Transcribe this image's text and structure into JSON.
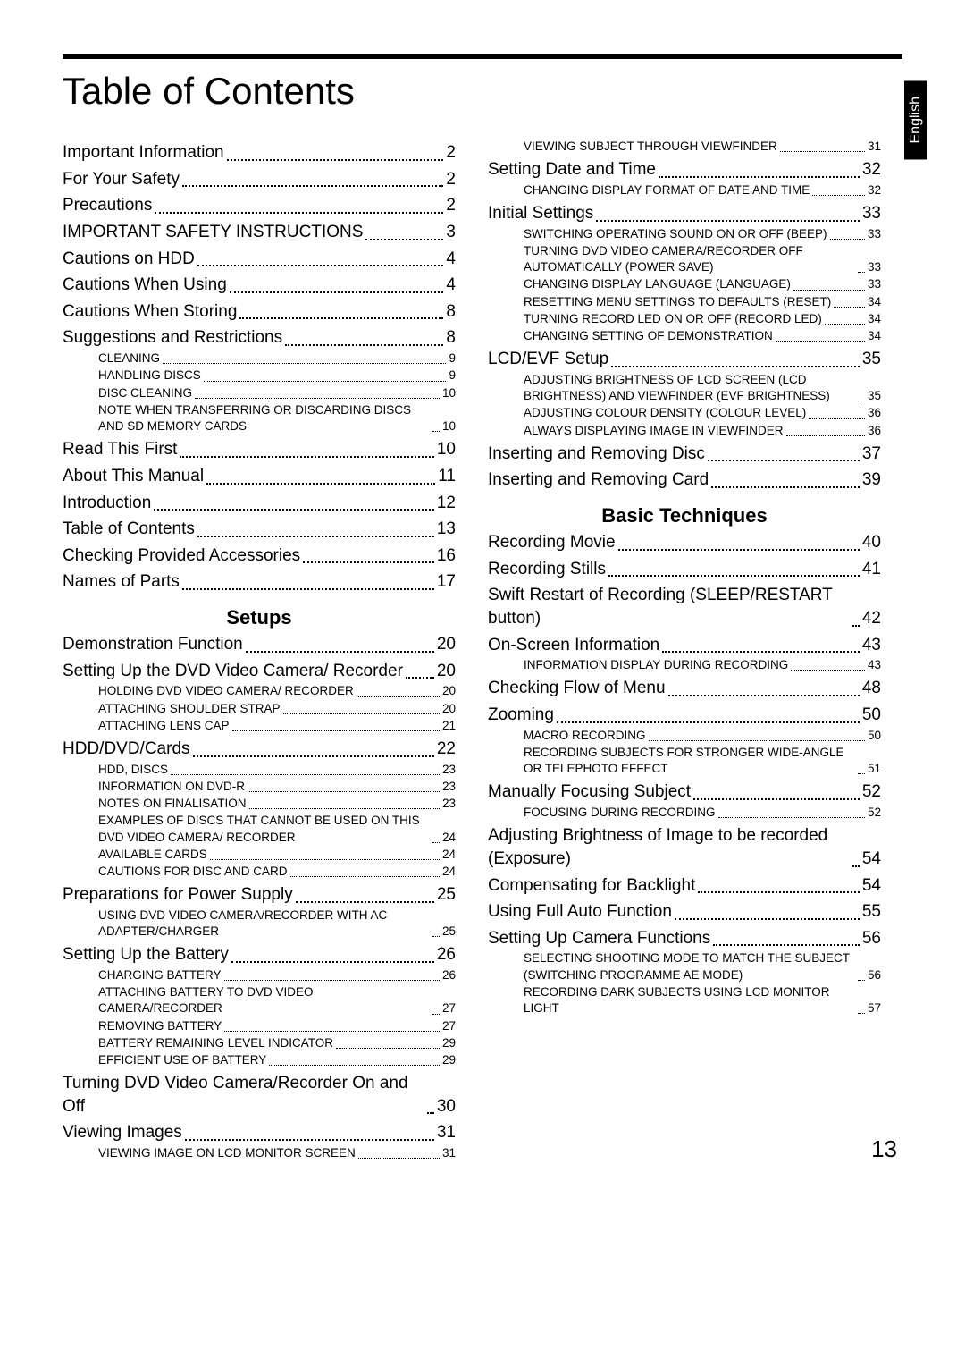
{
  "title": "Table of Contents",
  "language_tab": "English",
  "page_number": "13",
  "colors": {
    "text": "#000000",
    "background": "#ffffff",
    "tab_bg": "#000000",
    "tab_text": "#ffffff"
  },
  "left_column": [
    {
      "level": 1,
      "label": "Important Information",
      "page": "2"
    },
    {
      "level": 1,
      "label": "For Your Safety",
      "page": "2"
    },
    {
      "level": 1,
      "label": "Precautions",
      "page": "2"
    },
    {
      "level": 1,
      "label": "IMPORTANT SAFETY INSTRUCTIONS",
      "page": "3"
    },
    {
      "level": 1,
      "label": "Cautions on HDD",
      "page": "4"
    },
    {
      "level": 1,
      "label": "Cautions When Using",
      "page": "4"
    },
    {
      "level": 1,
      "label": "Cautions When Storing",
      "page": "8"
    },
    {
      "level": 1,
      "label": "Suggestions and Restrictions",
      "page": "8"
    },
    {
      "level": 3,
      "label": "CLEANING",
      "page": "9"
    },
    {
      "level": 3,
      "label": "HANDLING DISCS",
      "page": "9"
    },
    {
      "level": 3,
      "label": "DISC CLEANING",
      "page": "10"
    },
    {
      "level": 3,
      "label": "NOTE WHEN TRANSFERRING OR DISCARDING DISCS AND SD MEMORY CARDS",
      "page": "10"
    },
    {
      "level": 1,
      "label": "Read This First",
      "page": "10"
    },
    {
      "level": 1,
      "label": "About This Manual",
      "page": "11"
    },
    {
      "level": 1,
      "label": "Introduction",
      "page": "12"
    },
    {
      "level": 1,
      "label": "Table of Contents",
      "page": "13"
    },
    {
      "level": 1,
      "label": "Checking Provided Accessories",
      "page": "16"
    },
    {
      "level": 1,
      "label": "Names of Parts",
      "page": "17"
    },
    {
      "section": "Setups"
    },
    {
      "level": 1,
      "label": "Demonstration Function",
      "page": "20"
    },
    {
      "level": 1,
      "label": "Setting Up the DVD Video Camera/\nRecorder",
      "page": "20"
    },
    {
      "level": 3,
      "label": "HOLDING DVD VIDEO CAMERA/\nRECORDER",
      "page": "20"
    },
    {
      "level": 3,
      "label": "ATTACHING SHOULDER STRAP",
      "page": "20"
    },
    {
      "level": 3,
      "label": "ATTACHING LENS CAP",
      "page": "21"
    },
    {
      "level": 1,
      "label": "HDD/DVD/Cards",
      "page": "22"
    },
    {
      "level": 3,
      "label": "HDD, DISCS",
      "page": "23"
    },
    {
      "level": 3,
      "label": "INFORMATION ON DVD-R",
      "page": "23"
    },
    {
      "level": 3,
      "label": "NOTES ON FINALISATION",
      "page": "23"
    },
    {
      "level": 3,
      "label": "EXAMPLES OF DISCS THAT CANNOT BE USED ON THIS DVD VIDEO CAMERA/\nRECORDER",
      "page": "24"
    },
    {
      "level": 3,
      "label": "AVAILABLE CARDS",
      "page": "24"
    },
    {
      "level": 3,
      "label": "CAUTIONS FOR DISC AND CARD",
      "page": "24"
    },
    {
      "level": 1,
      "label": "Preparations for Power Supply",
      "page": "25"
    },
    {
      "level": 3,
      "label": "USING DVD VIDEO CAMERA/RECORDER WITH AC ADAPTER/CHARGER",
      "page": "25"
    },
    {
      "level": 1,
      "label": "Setting Up the Battery",
      "page": "26"
    },
    {
      "level": 3,
      "label": "CHARGING BATTERY",
      "page": "26"
    },
    {
      "level": 3,
      "label": "ATTACHING BATTERY TO DVD VIDEO CAMERA/RECORDER",
      "page": "27"
    },
    {
      "level": 3,
      "label": "REMOVING BATTERY",
      "page": "27"
    },
    {
      "level": 3,
      "label": "BATTERY REMAINING LEVEL INDICATOR",
      "page": "29"
    },
    {
      "level": 3,
      "label": "EFFICIENT USE OF BATTERY",
      "page": "29"
    },
    {
      "level": 1,
      "label": "Turning DVD Video Camera/Recorder On and Off",
      "page": "30"
    },
    {
      "level": 1,
      "label": "Viewing Images",
      "page": "31"
    },
    {
      "level": 3,
      "label": "VIEWING IMAGE ON LCD MONITOR SCREEN",
      "page": "31"
    }
  ],
  "right_column": [
    {
      "level": 3,
      "label": "VIEWING SUBJECT THROUGH VIEWFINDER",
      "page": "31"
    },
    {
      "level": 1,
      "label": "Setting Date and Time",
      "page": "32"
    },
    {
      "level": 3,
      "label": "CHANGING DISPLAY FORMAT OF DATE AND TIME",
      "page": "32"
    },
    {
      "level": 1,
      "label": "Initial Settings",
      "page": "33"
    },
    {
      "level": 3,
      "label": "SWITCHING OPERATING SOUND ON OR OFF (BEEP)",
      "page": "33"
    },
    {
      "level": 3,
      "label": "TURNING DVD VIDEO CAMERA/RECORDER OFF AUTOMATICALLY (POWER SAVE)",
      "page": "33"
    },
    {
      "level": 3,
      "label": "CHANGING DISPLAY LANGUAGE (LANGUAGE)",
      "page": "33"
    },
    {
      "level": 3,
      "label": "RESETTING MENU SETTINGS TO DEFAULTS (RESET)",
      "page": "34"
    },
    {
      "level": 3,
      "label": "TURNING RECORD LED ON OR OFF (RECORD LED)",
      "page": "34"
    },
    {
      "level": 3,
      "label": "CHANGING SETTING OF DEMONSTRATION",
      "page": "34"
    },
    {
      "level": 1,
      "label": "LCD/EVF Setup",
      "page": "35"
    },
    {
      "level": 3,
      "label": "ADJUSTING BRIGHTNESS OF LCD SCREEN (LCD BRIGHTNESS) AND VIEWFINDER (EVF BRIGHTNESS)",
      "page": "35"
    },
    {
      "level": 3,
      "label": "ADJUSTING COLOUR DENSITY (COLOUR LEVEL)",
      "page": "36"
    },
    {
      "level": 3,
      "label": "ALWAYS DISPLAYING IMAGE IN VIEWFINDER",
      "page": "36"
    },
    {
      "level": 1,
      "label": "Inserting and Removing Disc",
      "page": "37"
    },
    {
      "level": 1,
      "label": "Inserting and Removing Card",
      "page": "39"
    },
    {
      "section": "Basic Techniques"
    },
    {
      "level": 1,
      "label": "Recording Movie",
      "page": "40"
    },
    {
      "level": 1,
      "label": "Recording Stills",
      "page": "41"
    },
    {
      "level": 1,
      "label": "Swift Restart of Recording (SLEEP/RESTART button)",
      "page": "42"
    },
    {
      "level": 1,
      "label": "On-Screen Information",
      "page": "43"
    },
    {
      "level": 3,
      "label": "INFORMATION DISPLAY DURING RECORDING",
      "page": "43"
    },
    {
      "level": 1,
      "label": "Checking Flow of Menu",
      "page": "48"
    },
    {
      "level": 1,
      "label": "Zooming",
      "page": "50"
    },
    {
      "level": 3,
      "label": "MACRO RECORDING",
      "page": "50"
    },
    {
      "level": 3,
      "label": "RECORDING SUBJECTS FOR STRONGER WIDE-ANGLE OR TELEPHOTO EFFECT",
      "page": "51"
    },
    {
      "level": 1,
      "label": "Manually Focusing Subject",
      "page": "52"
    },
    {
      "level": 3,
      "label": "FOCUSING DURING RECORDING",
      "page": "52"
    },
    {
      "level": 1,
      "label": "Adjusting Brightness of Image to be recorded (Exposure)",
      "page": "54"
    },
    {
      "level": 1,
      "label": "Compensating for Backlight",
      "page": "54"
    },
    {
      "level": 1,
      "label": "Using Full Auto Function",
      "page": "55"
    },
    {
      "level": 1,
      "label": "Setting Up Camera Functions",
      "page": "56"
    },
    {
      "level": 3,
      "label": "SELECTING SHOOTING MODE TO MATCH THE SUBJECT\n(SWITCHING PROGRAMME AE MODE)",
      "page": "56"
    },
    {
      "level": 3,
      "label": "RECORDING DARK SUBJECTS USING LCD MONITOR LIGHT",
      "page": "57"
    }
  ]
}
